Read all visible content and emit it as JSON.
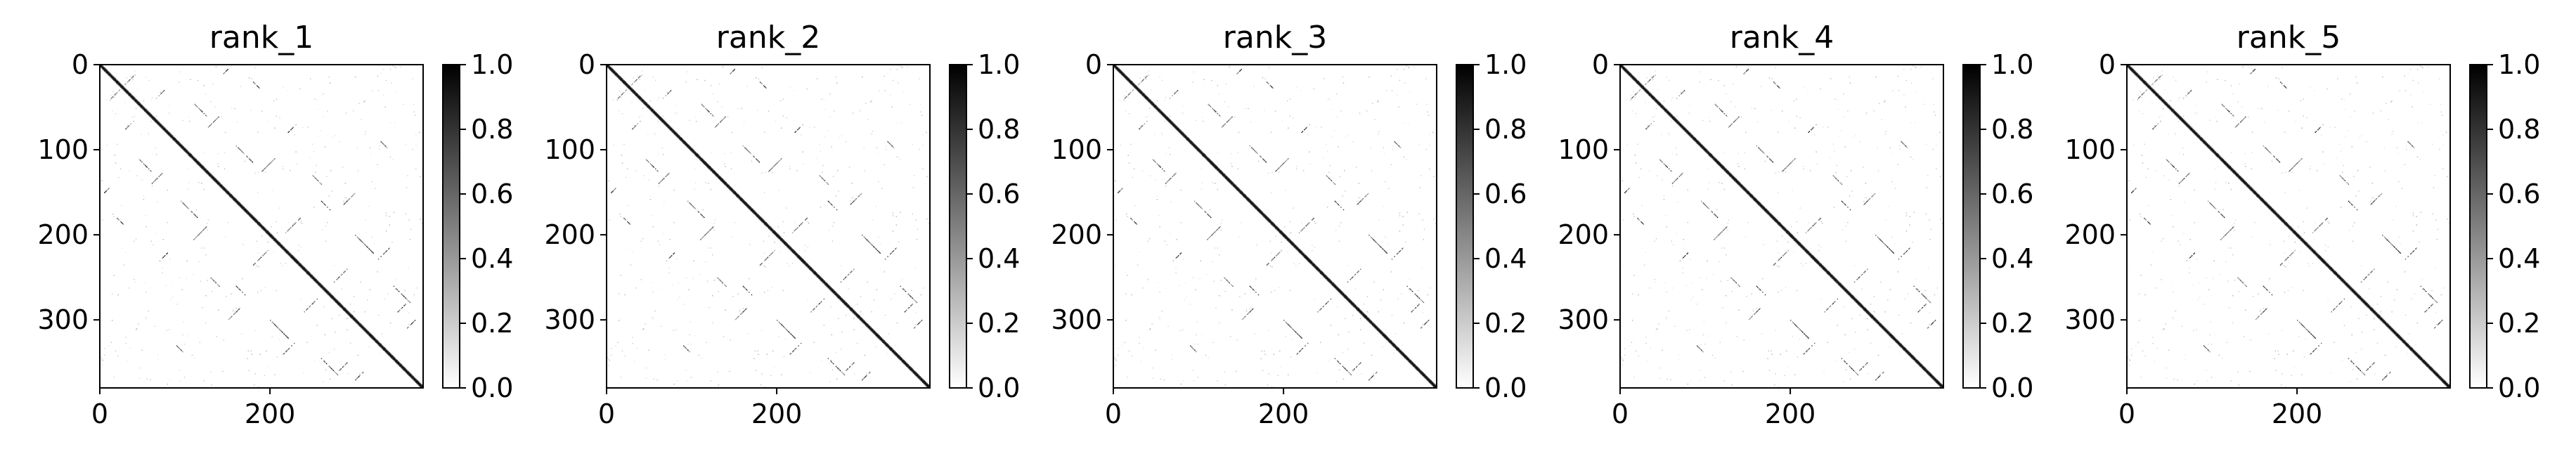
{
  "figure": {
    "background_color": "#ffffff",
    "colormap": "gray_r",
    "colormap_stops": [
      "#ffffff",
      "#000000"
    ]
  },
  "chart_data": [
    {
      "type": "heatmap",
      "title": "rank_1",
      "xlabel": "",
      "ylabel": "",
      "matrix_size": 380,
      "xlim": [
        0,
        380
      ],
      "ylim": [
        380,
        0
      ],
      "xticks": [
        0,
        200
      ],
      "xtick_labels": [
        "0",
        "200"
      ],
      "yticks": [
        0,
        100,
        200,
        300
      ],
      "ytick_labels": [
        "0",
        "100",
        "200",
        "300"
      ],
      "colorbar": {
        "range": [
          0.0,
          1.0
        ],
        "ticks": [
          0.0,
          0.2,
          0.4,
          0.6,
          0.8,
          1.0
        ],
        "tick_labels": [
          "0.0",
          "0.2",
          "0.4",
          "0.6",
          "0.8",
          "1.0"
        ]
      },
      "pattern": "strong main diagonal with sparse off-diagonal contact bands"
    },
    {
      "type": "heatmap",
      "title": "rank_2",
      "xlabel": "",
      "ylabel": "",
      "matrix_size": 380,
      "xlim": [
        0,
        380
      ],
      "ylim": [
        380,
        0
      ],
      "xticks": [
        0,
        200
      ],
      "xtick_labels": [
        "0",
        "200"
      ],
      "yticks": [
        0,
        100,
        200,
        300
      ],
      "ytick_labels": [
        "0",
        "100",
        "200",
        "300"
      ],
      "colorbar": {
        "range": [
          0.0,
          1.0
        ],
        "ticks": [
          0.0,
          0.2,
          0.4,
          0.6,
          0.8,
          1.0
        ],
        "tick_labels": [
          "0.0",
          "0.2",
          "0.4",
          "0.6",
          "0.8",
          "1.0"
        ]
      },
      "pattern": "strong main diagonal with sparse off-diagonal contact bands"
    },
    {
      "type": "heatmap",
      "title": "rank_3",
      "xlabel": "",
      "ylabel": "",
      "matrix_size": 380,
      "xlim": [
        0,
        380
      ],
      "ylim": [
        380,
        0
      ],
      "xticks": [
        0,
        200
      ],
      "xtick_labels": [
        "0",
        "200"
      ],
      "yticks": [
        0,
        100,
        200,
        300
      ],
      "ytick_labels": [
        "0",
        "100",
        "200",
        "300"
      ],
      "colorbar": {
        "range": [
          0.0,
          1.0
        ],
        "ticks": [
          0.0,
          0.2,
          0.4,
          0.6,
          0.8,
          1.0
        ],
        "tick_labels": [
          "0.0",
          "0.2",
          "0.4",
          "0.6",
          "0.8",
          "1.0"
        ]
      },
      "pattern": "strong main diagonal with sparse off-diagonal contact bands"
    },
    {
      "type": "heatmap",
      "title": "rank_4",
      "xlabel": "",
      "ylabel": "",
      "matrix_size": 380,
      "xlim": [
        0,
        380
      ],
      "ylim": [
        380,
        0
      ],
      "xticks": [
        0,
        200
      ],
      "xtick_labels": [
        "0",
        "200"
      ],
      "yticks": [
        0,
        100,
        200,
        300
      ],
      "ytick_labels": [
        "0",
        "100",
        "200",
        "300"
      ],
      "colorbar": {
        "range": [
          0.0,
          1.0
        ],
        "ticks": [
          0.0,
          0.2,
          0.4,
          0.6,
          0.8,
          1.0
        ],
        "tick_labels": [
          "0.0",
          "0.2",
          "0.4",
          "0.6",
          "0.8",
          "1.0"
        ]
      },
      "pattern": "strong main diagonal with sparse off-diagonal contact bands"
    },
    {
      "type": "heatmap",
      "title": "rank_5",
      "xlabel": "",
      "ylabel": "",
      "matrix_size": 380,
      "xlim": [
        0,
        380
      ],
      "ylim": [
        380,
        0
      ],
      "xticks": [
        0,
        200
      ],
      "xtick_labels": [
        "0",
        "200"
      ],
      "yticks": [
        0,
        100,
        200,
        300
      ],
      "ytick_labels": [
        "0",
        "100",
        "200",
        "300"
      ],
      "colorbar": {
        "range": [
          0.0,
          1.0
        ],
        "ticks": [
          0.0,
          0.2,
          0.4,
          0.6,
          0.8,
          1.0
        ],
        "tick_labels": [
          "0.0",
          "0.2",
          "0.4",
          "0.6",
          "0.8",
          "1.0"
        ]
      },
      "pattern": "strong main diagonal with sparse off-diagonal contact bands"
    }
  ]
}
